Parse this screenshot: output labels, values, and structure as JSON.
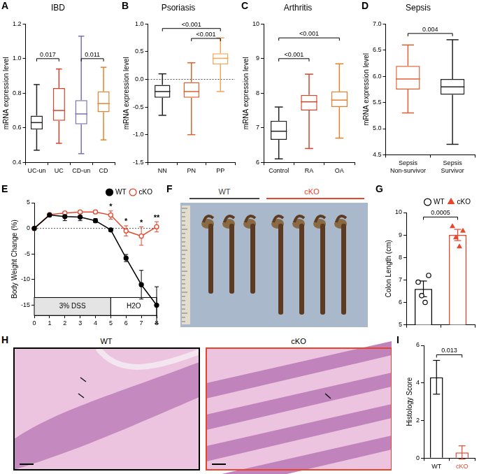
{
  "chart_data": [
    {
      "panel": "A",
      "type": "box",
      "title": "IBD",
      "y_label": "mRNA expression level",
      "categories": [
        "UC-un",
        "UC",
        "CD-un",
        "CD"
      ],
      "colors": [
        "#222222",
        "#d8432b",
        "#7a6fb4",
        "#e8822a"
      ],
      "boxes": [
        {
          "min": 0.47,
          "q1": 0.59,
          "median": 0.63,
          "q3": 0.67,
          "max": 0.85
        },
        {
          "min": 0.51,
          "q1": 0.64,
          "median": 0.7,
          "q3": 0.83,
          "max": 0.94
        },
        {
          "min": 0.45,
          "q1": 0.62,
          "median": 0.68,
          "q3": 0.76,
          "max": 1.13
        },
        {
          "min": 0.53,
          "q1": 0.69,
          "median": 0.74,
          "q3": 0.81,
          "max": 0.95
        }
      ],
      "ylim": [
        0.4,
        1.2
      ],
      "yticks": [
        0.4,
        0.6,
        0.8,
        {
          "value": 1,
          "label": "1.0"
        },
        1.2
      ],
      "grid": false,
      "comparisons": [
        {
          "between": [
            "UC-un",
            "UC"
          ],
          "y": 1.0,
          "label": "0.017"
        },
        {
          "between": [
            "CD-un",
            "CD"
          ],
          "y": 1.0,
          "label": "0.011"
        }
      ]
    },
    {
      "panel": "B",
      "type": "box",
      "title": "Psoriasis",
      "y_label": "mRNA expression level",
      "categories": [
        "NN",
        "PN",
        "PP"
      ],
      "colors": [
        "#222222",
        "#e0622e",
        "#f2a65a"
      ],
      "boxes": [
        {
          "min": -0.65,
          "q1": -0.33,
          "median": -0.22,
          "q3": -0.1,
          "max": 0.1
        },
        {
          "min": -1.0,
          "q1": -0.33,
          "median": -0.22,
          "q3": -0.05,
          "max": 0.3
        },
        {
          "min": -0.22,
          "q1": 0.27,
          "median": 0.38,
          "q3": 0.47,
          "max": 0.75
        }
      ],
      "ylim": [
        -1.5,
        1.0
      ],
      "yticks": [
        -1.5,
        {
          "value": -1,
          "label": "-1.0"
        },
        -0.5,
        {
          "value": 0,
          "label": "0.0"
        },
        0.5,
        {
          "value": 1,
          "label": "1.0"
        }
      ],
      "grid": false,
      "reference_line": 0,
      "comparisons": [
        {
          "between": [
            "NN",
            "PP"
          ],
          "y": 0.92,
          "label": "<0.001"
        },
        {
          "between": [
            "PN",
            "PP"
          ],
          "y": 0.74,
          "label": "<0.001"
        }
      ]
    },
    {
      "panel": "C",
      "type": "box",
      "title": "Arthritis",
      "y_label": "mRNA expression level",
      "categories": [
        "Control",
        "RA",
        "OA"
      ],
      "colors": [
        "#222222",
        "#d8432b",
        "#e8822a"
      ],
      "boxes": [
        {
          "min": 6.1,
          "q1": 6.65,
          "median": 6.9,
          "q3": 7.2,
          "max": 7.6
        },
        {
          "min": 6.4,
          "q1": 7.5,
          "median": 7.75,
          "q3": 7.95,
          "max": 8.55
        },
        {
          "min": 6.7,
          "q1": 7.6,
          "median": 7.8,
          "q3": 8.05,
          "max": 8.85
        }
      ],
      "ylim": [
        6,
        10
      ],
      "yticks": [
        6,
        7,
        8,
        9,
        10
      ],
      "grid": false,
      "comparisons": [
        {
          "between": [
            "Control",
            "RA"
          ],
          "y": 9.0,
          "label": "<0.001"
        },
        {
          "between": [
            "Control",
            "OA"
          ],
          "y": 9.6,
          "label": "<0.001"
        }
      ]
    },
    {
      "panel": "D",
      "type": "box",
      "title": "Sepsis",
      "y_label": "mRNA expression level",
      "categories": [
        "Sepsis Non-survivor",
        "Sepsis Survivor"
      ],
      "colors": [
        "#e06030",
        "#222222"
      ],
      "boxes": [
        {
          "min": 5.3,
          "q1": 5.75,
          "median": 5.95,
          "q3": 6.2,
          "max": 6.6
        },
        {
          "min": 4.7,
          "q1": 5.65,
          "median": 5.8,
          "q3": 5.95,
          "max": 6.7
        }
      ],
      "ylim": [
        4.5,
        7.0
      ],
      "yticks": [
        4.5,
        {
          "value": 5,
          "label": "5.0"
        },
        5.5,
        {
          "value": 6,
          "label": "6.0"
        },
        6.5,
        {
          "value": 7,
          "label": "7.0"
        }
      ],
      "grid": false,
      "comparisons": [
        {
          "between": [
            "Sepsis Non-survivor",
            "Sepsis Survivor"
          ],
          "y": 6.82,
          "label": "0.004"
        }
      ]
    },
    {
      "panel": "E",
      "type": "line",
      "y_label": "Body Weight Change (%)",
      "x": [
        0,
        1,
        2,
        3,
        4,
        5,
        6,
        7,
        8
      ],
      "series": [
        {
          "name": "WT",
          "color": "#000000",
          "marker": "circle",
          "values": [
            0,
            2.6,
            2.3,
            2.2,
            1.5,
            -0.3,
            -5.8,
            -11,
            -15
          ],
          "errors": [
            0,
            0.3,
            0.8,
            0.7,
            0.4,
            0.3,
            0.7,
            2.8,
            3.6
          ]
        },
        {
          "name": "cKO",
          "color": "#e8452c",
          "marker": "open_circle",
          "values": [
            0,
            2.7,
            3.0,
            3.2,
            3.2,
            2.6,
            -0.5,
            -1.5,
            0.3
          ],
          "errors": [
            0,
            0.2,
            0.3,
            0.2,
            0.3,
            0.8,
            1.0,
            1.8,
            1.0
          ]
        }
      ],
      "xlim": [
        0,
        8
      ],
      "xticks": [
        0,
        1,
        2,
        3,
        4,
        5,
        6,
        7,
        8
      ],
      "ylim": [
        -17,
        5
      ],
      "yticks": [
        -15,
        -10,
        -5,
        0,
        5
      ],
      "grid": false,
      "reference_line": 0,
      "legend": "top right",
      "annotations": [
        {
          "x": 5,
          "y": 4.2,
          "text": "*"
        },
        {
          "x": 6,
          "y": 1.3,
          "text": "*"
        },
        {
          "x": 7,
          "y": 1.0,
          "text": "*"
        },
        {
          "x": 8,
          "y": 2.0,
          "text": "**"
        }
      ],
      "phases": [
        {
          "label": "3% DSS",
          "x": [
            0,
            5
          ],
          "y": [
            -17,
            -13.5
          ]
        },
        {
          "label": "H2O",
          "x": [
            5,
            8
          ],
          "y": [
            -17,
            -13.5
          ]
        }
      ]
    },
    {
      "panel": "G",
      "type": "bar",
      "y_label": "Colon Length (cm)",
      "series": [
        {
          "name": "WT",
          "color": "#000000",
          "marker": "open_circle",
          "values": [
            6.6
          ],
          "errors": [
            0.35
          ],
          "points": [
            6.9,
            6.3,
            6.0,
            7.2
          ]
        },
        {
          "name": "cKO",
          "color": "#e8452c",
          "marker": "triangle",
          "values": [
            9.0
          ],
          "errors": [
            0.25
          ],
          "points": [
            9.4,
            8.9,
            8.5,
            9.2
          ]
        }
      ],
      "ylim": [
        5,
        10
      ],
      "yticks": [
        5,
        6,
        7,
        8,
        9,
        10
      ],
      "grid": false,
      "tick_labels": "y",
      "legend": "top right",
      "comparisons": [
        {
          "between": [
            "WT",
            "cKO"
          ],
          "y": 9.8,
          "label": "0.0005"
        }
      ]
    },
    {
      "panel": "I",
      "type": "bar",
      "y_label": "Histology Score",
      "categories": [
        "WT",
        "cKO"
      ],
      "values": [
        4.3,
        0.3
      ],
      "errors": [
        0.9,
        0.35
      ],
      "colors": [
        "#000000",
        "#e8452c"
      ],
      "ylim": [
        0,
        6
      ],
      "yticks": [
        0,
        2,
        4,
        6
      ],
      "grid": false,
      "comparisons": [
        {
          "between": [
            "WT",
            "cKO"
          ],
          "y": 5.5,
          "label": "0.013"
        }
      ]
    }
  ],
  "images": [
    {
      "panel": "F",
      "type": "image",
      "labels": [
        "WT",
        "cKO"
      ],
      "colors": [
        "#444444",
        "#e8452c"
      ]
    },
    {
      "panel": "H",
      "type": "image",
      "labels": [
        "WT",
        "cKO"
      ],
      "colors": [
        "#000000",
        "#e8452c"
      ]
    }
  ]
}
